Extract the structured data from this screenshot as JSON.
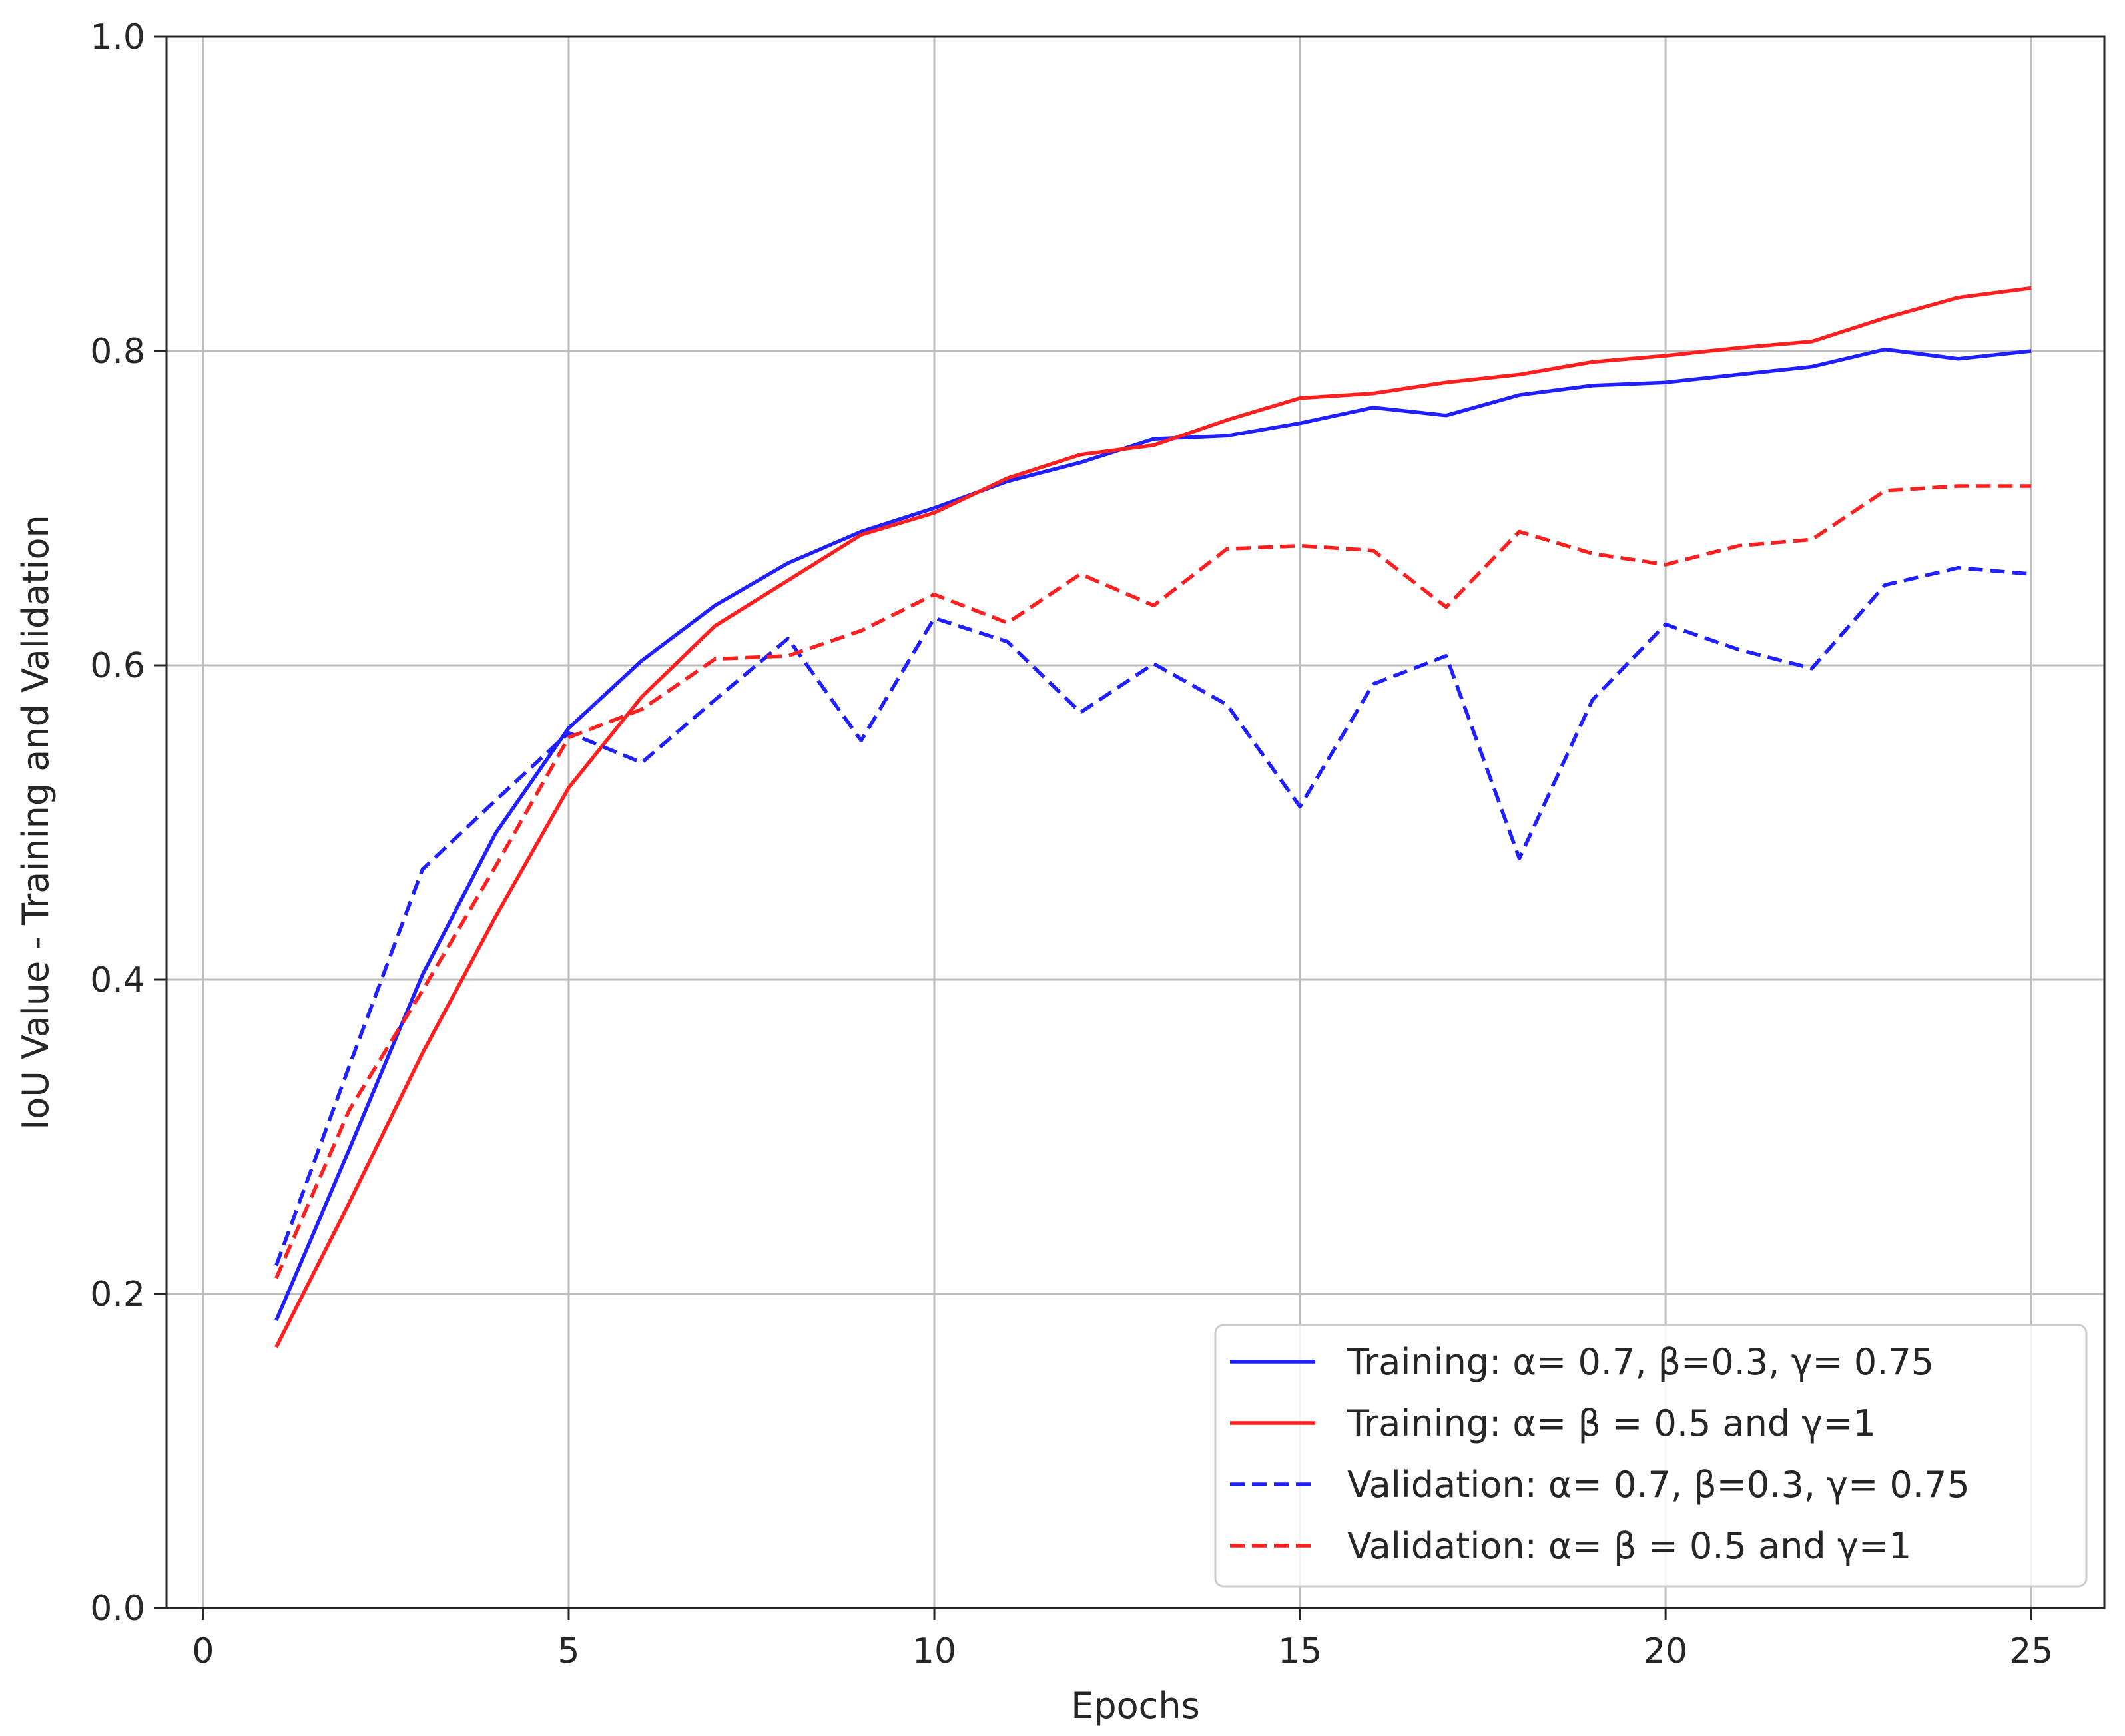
{
  "chart_data": {
    "type": "line",
    "title": "",
    "xlabel": "Epochs",
    "ylabel": "IoU Value - Training and Validation",
    "xlim": [
      -0.5,
      26
    ],
    "ylim": [
      0.0,
      1.0
    ],
    "x_ticks": [
      0,
      5,
      10,
      15,
      20,
      25
    ],
    "y_ticks": [
      "0.0",
      "0.2",
      "0.4",
      "0.6",
      "0.8",
      "1.0"
    ],
    "grid": true,
    "legend_position": "bottom-right",
    "x": [
      1,
      2,
      3,
      4,
      5,
      6,
      7,
      8,
      9,
      10,
      11,
      12,
      13,
      14,
      15,
      16,
      17,
      18,
      19,
      20,
      21,
      22,
      23,
      24,
      25
    ],
    "series": [
      {
        "name": "Training: α= 0.7, β=0.3, γ= 0.75",
        "color": "#1f1fff",
        "dashed": false,
        "values": [
          0.183,
          0.292,
          0.403,
          0.493,
          0.56,
          0.603,
          0.638,
          0.665,
          0.685,
          0.7,
          0.717,
          0.729,
          0.744,
          0.746,
          0.754,
          0.764,
          0.759,
          0.772,
          0.778,
          0.78,
          0.785,
          0.79,
          0.801,
          0.795,
          0.8
        ]
      },
      {
        "name": "Training: α= β = 0.5 and γ=1",
        "color": "#ff1f1f",
        "dashed": false,
        "values": [
          0.166,
          0.258,
          0.353,
          0.44,
          0.522,
          0.58,
          0.625,
          0.654,
          0.683,
          0.697,
          0.719,
          0.734,
          0.74,
          0.756,
          0.77,
          0.773,
          0.78,
          0.785,
          0.793,
          0.797,
          0.802,
          0.806,
          0.821,
          0.834,
          0.84
        ]
      },
      {
        "name": "Validation: α= 0.7, β=0.3, γ= 0.75",
        "color": "#1f1fff",
        "dashed": true,
        "values": [
          0.218,
          0.345,
          0.47,
          0.514,
          0.557,
          0.538,
          0.578,
          0.617,
          0.552,
          0.63,
          0.615,
          0.57,
          0.601,
          0.575,
          0.51,
          0.588,
          0.606,
          0.477,
          0.578,
          0.626,
          0.61,
          0.598,
          0.651,
          0.662,
          0.658
        ]
      },
      {
        "name": "Validation: α= β = 0.5 and γ=1",
        "color": "#ff1f1f",
        "dashed": true,
        "values": [
          0.21,
          0.317,
          0.393,
          0.472,
          0.554,
          0.572,
          0.604,
          0.606,
          0.622,
          0.645,
          0.627,
          0.658,
          0.638,
          0.674,
          0.676,
          0.673,
          0.637,
          0.685,
          0.671,
          0.664,
          0.676,
          0.68,
          0.711,
          0.714,
          0.714
        ]
      }
    ]
  }
}
